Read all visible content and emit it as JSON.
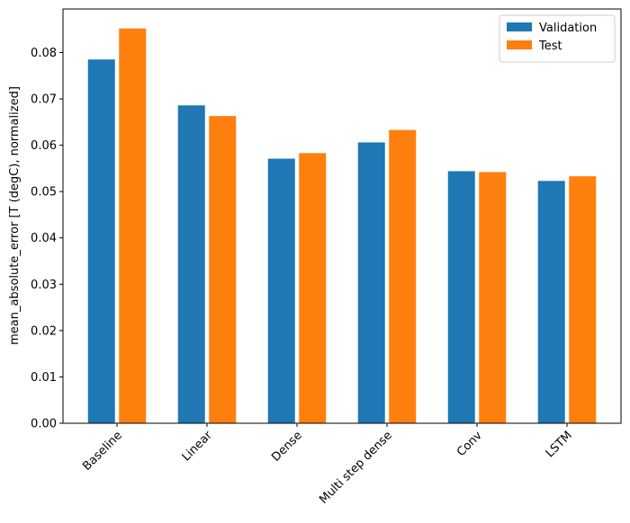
{
  "chart_data": {
    "type": "bar",
    "ylabel": "mean_absolute_error [T (degC), normalized]",
    "categories": [
      "Baseline",
      "Linear",
      "Dense",
      "Multi step dense",
      "Conv",
      "LSTM"
    ],
    "series": [
      {
        "name": "Validation",
        "color": "#1f77b4",
        "values": [
          0.0785,
          0.0686,
          0.0571,
          0.0606,
          0.0544,
          0.0523
        ]
      },
      {
        "name": "Test",
        "color": "#ff7f0e",
        "values": [
          0.0852,
          0.0663,
          0.0583,
          0.0633,
          0.0542,
          0.0533
        ]
      }
    ],
    "ylim": [
      0,
      0.0894
    ],
    "yticks": [
      {
        "value": 0,
        "label": "0.00"
      },
      {
        "value": 0.01,
        "label": "0.01"
      },
      {
        "value": 0.02,
        "label": "0.02"
      },
      {
        "value": 0.03,
        "label": "0.03"
      },
      {
        "value": 0.04,
        "label": "0.04"
      },
      {
        "value": 0.05,
        "label": "0.05"
      },
      {
        "value": 0.06,
        "label": "0.06"
      },
      {
        "value": 0.07,
        "label": "0.07"
      },
      {
        "value": 0.08,
        "label": "0.08"
      }
    ],
    "legend": "upper right",
    "grid": false
  }
}
